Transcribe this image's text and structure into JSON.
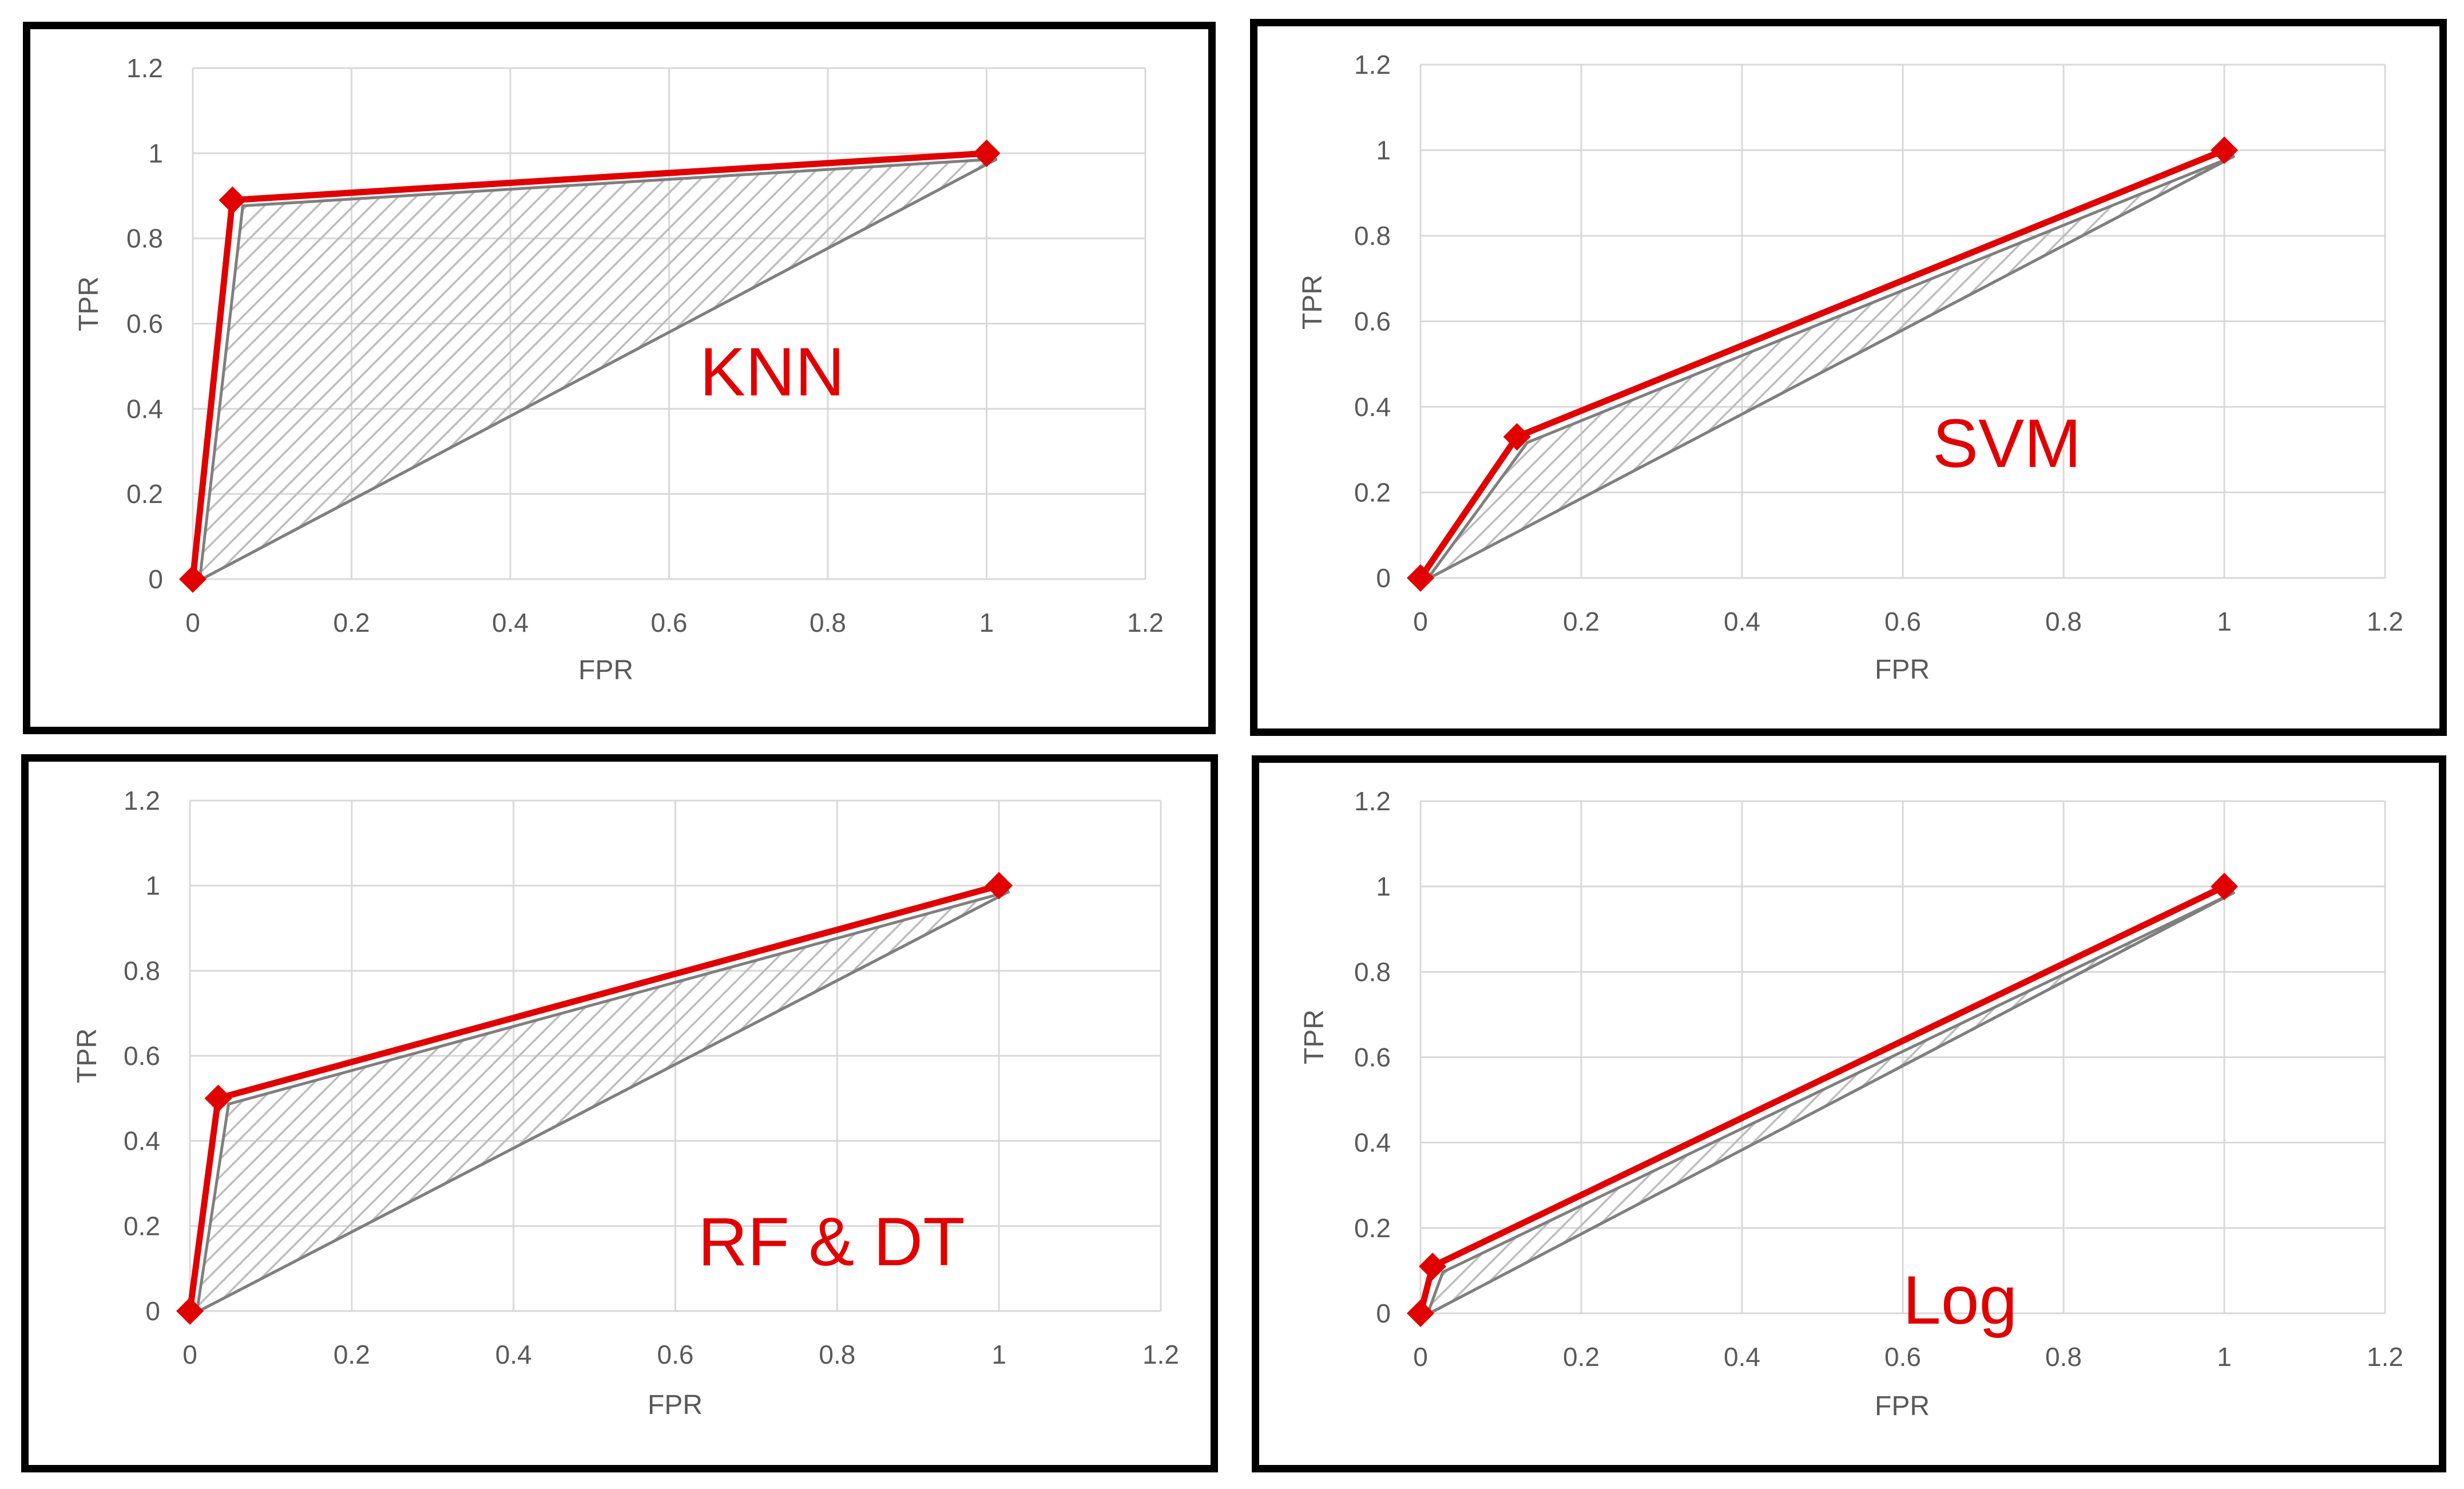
{
  "theme": {
    "roc_color": "#e00000",
    "chance_color": "#7f7f7f",
    "hatch_color": "#bdbdbd",
    "grid_color": "#d9d9d9",
    "text_color": "#595959",
    "frame_color": "#000000"
  },
  "chart_data": [
    {
      "type": "line",
      "title": "KNN",
      "xlabel": "FPR",
      "ylabel": "TPR",
      "xlim": [
        0,
        1.2
      ],
      "ylim": [
        0,
        1.2
      ],
      "xticks": [
        "0",
        "0.2",
        "0.4",
        "0.6",
        "0.8",
        "1",
        "1.2"
      ],
      "yticks": [
        "0",
        "0.2",
        "0.4",
        "0.6",
        "0.8",
        "1",
        "1.2"
      ],
      "grid": true,
      "series": [
        {
          "name": "ROC",
          "x": [
            0,
            0.05,
            1
          ],
          "y": [
            0,
            0.89,
            1
          ],
          "markers": "diamond"
        },
        {
          "name": "Chance",
          "x": [
            0,
            1
          ],
          "y": [
            0,
            1
          ]
        }
      ],
      "shaded_area": "between ROC and chance line"
    },
    {
      "type": "line",
      "title": "SVM",
      "xlabel": "FPR",
      "ylabel": "TPR",
      "xlim": [
        0,
        1.2
      ],
      "ylim": [
        0,
        1.2
      ],
      "xticks": [
        "0",
        "0.2",
        "0.4",
        "0.6",
        "0.8",
        "1",
        "1.2"
      ],
      "yticks": [
        "0",
        "0.2",
        "0.4",
        "0.6",
        "0.8",
        "1",
        "1.2"
      ],
      "grid": true,
      "series": [
        {
          "name": "ROC",
          "x": [
            0,
            0.12,
            1
          ],
          "y": [
            0,
            0.33,
            1
          ],
          "markers": "diamond"
        },
        {
          "name": "Chance",
          "x": [
            0,
            1
          ],
          "y": [
            0,
            1
          ]
        }
      ],
      "shaded_area": "between ROC and chance line"
    },
    {
      "type": "line",
      "title": "RF & DT",
      "xlabel": "FPR",
      "ylabel": "TPR",
      "xlim": [
        0,
        1.2
      ],
      "ylim": [
        0,
        1.2
      ],
      "xticks": [
        "0",
        "0.2",
        "0.4",
        "0.6",
        "0.8",
        "1",
        "1.2"
      ],
      "yticks": [
        "0",
        "0.2",
        "0.4",
        "0.6",
        "0.8",
        "1",
        "1.2"
      ],
      "grid": true,
      "series": [
        {
          "name": "ROC",
          "x": [
            0,
            0.035,
            1
          ],
          "y": [
            0,
            0.5,
            1
          ],
          "markers": "diamond"
        },
        {
          "name": "Chance",
          "x": [
            0,
            1
          ],
          "y": [
            0,
            1
          ]
        }
      ],
      "shaded_area": "between ROC and chance line"
    },
    {
      "type": "line",
      "title": "Log",
      "xlabel": "FPR",
      "ylabel": "TPR",
      "xlim": [
        0,
        1.2
      ],
      "ylim": [
        0,
        1.2
      ],
      "xticks": [
        "0",
        "0.2",
        "0.4",
        "0.6",
        "0.8",
        "1",
        "1.2"
      ],
      "yticks": [
        "0",
        "0.2",
        "0.4",
        "0.6",
        "0.8",
        "1",
        "1.2"
      ],
      "grid": true,
      "series": [
        {
          "name": "ROC",
          "x": [
            0,
            0.015,
            1
          ],
          "y": [
            0,
            0.11,
            1
          ],
          "markers": "diamond"
        },
        {
          "name": "Chance",
          "x": [
            0,
            1
          ],
          "y": [
            0,
            1
          ]
        }
      ],
      "shaded_area": "between ROC and chance line"
    }
  ]
}
